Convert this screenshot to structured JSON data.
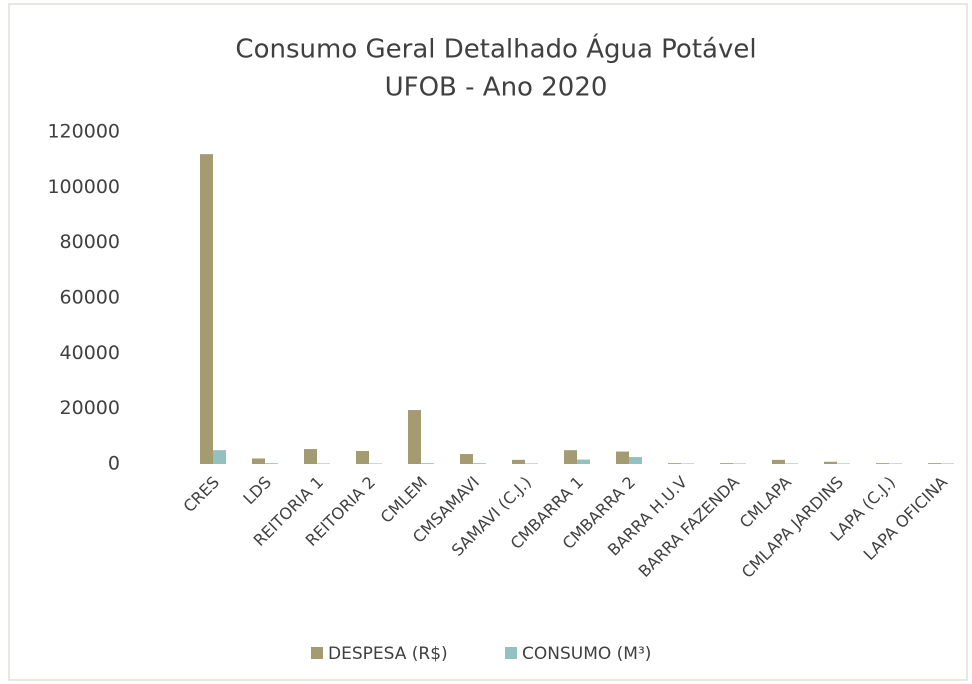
{
  "chart_data": {
    "type": "bar",
    "title": [
      "Consumo Geral Detalhado Água Potável",
      "UFOB - Ano 2020"
    ],
    "categories": [
      "CRES",
      "LDS",
      "REITORIA 1",
      "REITORIA 2",
      "CMLEM",
      "CMSAMAVI",
      "SAMAVI (C.J.)",
      "CMBARRA 1",
      "CMBARRA 2",
      "BARRA H.U.V",
      "BARRA FAZENDA",
      "CMLAPA",
      "CMLAPA JARDINS",
      "LAPA (C.J.)",
      "LAPA OFICINA"
    ],
    "series": [
      {
        "name": "DESPESA (R$)",
        "color": "#a39c72",
        "values": [
          112000,
          2000,
          5400,
          4700,
          19500,
          3600,
          1500,
          5000,
          4500,
          300,
          300,
          1500,
          800,
          300,
          300
        ]
      },
      {
        "name": "CONSUMO (M³)",
        "color": "#92c1c0",
        "values": [
          5000,
          300,
          200,
          200,
          300,
          300,
          200,
          1600,
          2500,
          200,
          200,
          200,
          200,
          200,
          200
        ]
      }
    ],
    "ylim": [
      0,
      120000
    ],
    "yticks": [
      0,
      20000,
      40000,
      60000,
      80000,
      100000,
      120000
    ],
    "grid": false,
    "legend": "bottom"
  }
}
